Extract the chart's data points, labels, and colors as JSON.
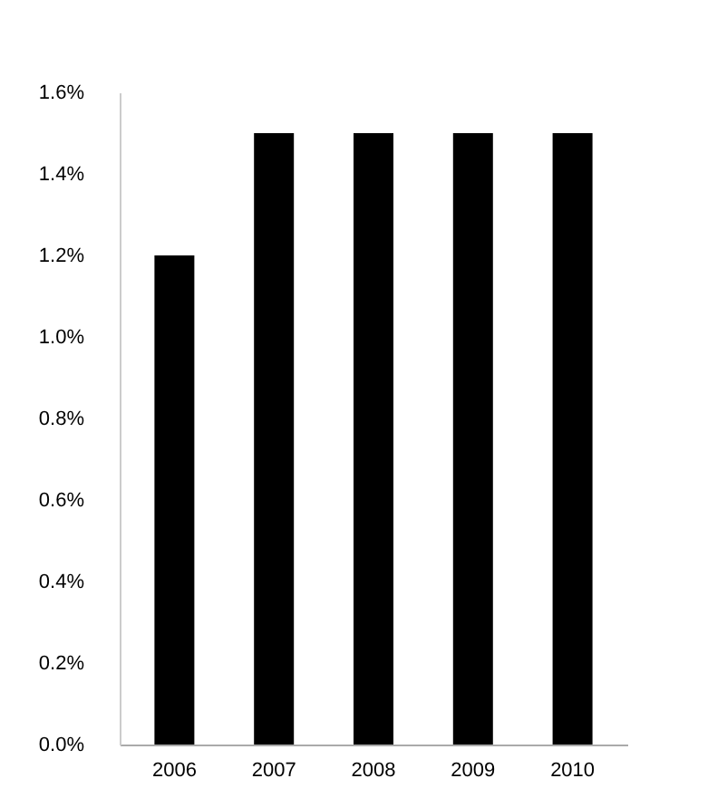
{
  "chart_data": {
    "type": "bar",
    "categories": [
      "2006",
      "2007",
      "2008",
      "2009",
      "2010"
    ],
    "values": [
      1.2,
      1.5,
      1.5,
      1.5,
      1.5
    ],
    "color": "#000000",
    "ylim": [
      0,
      1.6
    ],
    "yticks": [
      {
        "value": 0,
        "label": "0.0%"
      },
      {
        "value": 0.2,
        "label": "0.2%"
      },
      {
        "value": 0.4,
        "label": "0.4%"
      },
      {
        "value": 0.6,
        "label": "0.6%"
      },
      {
        "value": 0.8,
        "label": "0.8%"
      },
      {
        "value": 1.0,
        "label": "1.0%"
      },
      {
        "value": 1.2,
        "label": "1.2%"
      },
      {
        "value": 1.4,
        "label": "1.4%"
      },
      {
        "value": 1.6,
        "label": "1.6%"
      }
    ],
    "grid": false
  }
}
